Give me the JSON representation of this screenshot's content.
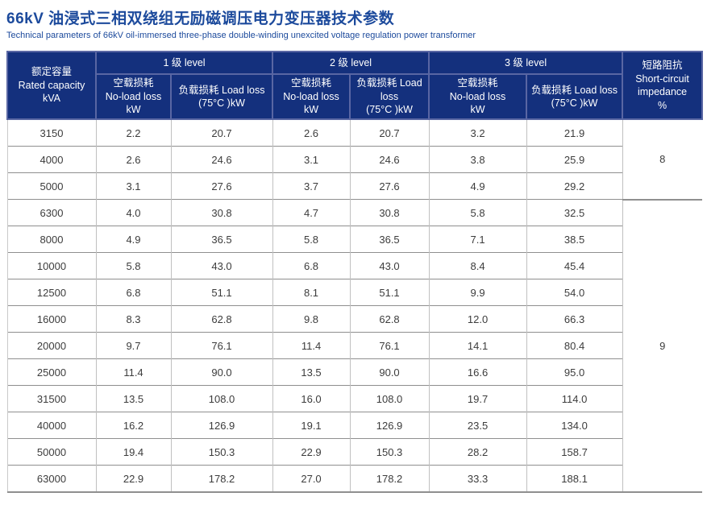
{
  "title": {
    "zh": "66kV 油浸式三相双绕组无励磁调压电力变压器技术参数",
    "en": "Technical parameters of 66kV oil-immersed three-phase double-winding unexcited voltage regulation power transformer"
  },
  "colors": {
    "header_bg": "#14307D",
    "header_divider": "#5966A3",
    "title_blue": "#1C4A9C",
    "grid_horizontal": "#8F8F8F",
    "grid_vertical": "#C0C0C0",
    "cell_text": "#3C3C3C"
  },
  "table": {
    "header": {
      "capacity": {
        "zh": "额定容量",
        "en": "Rated capacity",
        "unit": "kVA"
      },
      "groups": [
        {
          "label": "1 级 level"
        },
        {
          "label": "2 级 level"
        },
        {
          "label": "3 级 level"
        }
      ],
      "no_load": {
        "zh": "空载损耗",
        "en": "No-load loss",
        "unit": "kW"
      },
      "load_loss": {
        "line1": "负载损耗 Load loss",
        "line2": "(75°C )kW"
      },
      "impedance": {
        "zh": "短路阻抗",
        "en1": "Short-circuit",
        "en2": "impedance",
        "unit": "%"
      }
    },
    "rows": [
      {
        "capacity": "3150",
        "l1_no_load": "2.2",
        "l1_load": "20.7",
        "l2_no_load": "2.6",
        "l2_load": "20.7",
        "l3_no_load": "3.2",
        "l3_load": "21.9"
      },
      {
        "capacity": "4000",
        "l1_no_load": "2.6",
        "l1_load": "24.6",
        "l2_no_load": "3.1",
        "l2_load": "24.6",
        "l3_no_load": "3.8",
        "l3_load": "25.9"
      },
      {
        "capacity": "5000",
        "l1_no_load": "3.1",
        "l1_load": "27.6",
        "l2_no_load": "3.7",
        "l2_load": "27.6",
        "l3_no_load": "4.9",
        "l3_load": "29.2"
      },
      {
        "capacity": "6300",
        "l1_no_load": "4.0",
        "l1_load": "30.8",
        "l2_no_load": "4.7",
        "l2_load": "30.8",
        "l3_no_load": "5.8",
        "l3_load": "32.5"
      },
      {
        "capacity": "8000",
        "l1_no_load": "4.9",
        "l1_load": "36.5",
        "l2_no_load": "5.8",
        "l2_load": "36.5",
        "l3_no_load": "7.1",
        "l3_load": "38.5"
      },
      {
        "capacity": "10000",
        "l1_no_load": "5.8",
        "l1_load": "43.0",
        "l2_no_load": "6.8",
        "l2_load": "43.0",
        "l3_no_load": "8.4",
        "l3_load": "45.4"
      },
      {
        "capacity": "12500",
        "l1_no_load": "6.8",
        "l1_load": "51.1",
        "l2_no_load": "8.1",
        "l2_load": "51.1",
        "l3_no_load": "9.9",
        "l3_load": "54.0"
      },
      {
        "capacity": "16000",
        "l1_no_load": "8.3",
        "l1_load": "62.8",
        "l2_no_load": "9.8",
        "l2_load": "62.8",
        "l3_no_load": "12.0",
        "l3_load": "66.3"
      },
      {
        "capacity": "20000",
        "l1_no_load": "9.7",
        "l1_load": "76.1",
        "l2_no_load": "11.4",
        "l2_load": "76.1",
        "l3_no_load": "14.1",
        "l3_load": "80.4"
      },
      {
        "capacity": "25000",
        "l1_no_load": "11.4",
        "l1_load": "90.0",
        "l2_no_load": "13.5",
        "l2_load": "90.0",
        "l3_no_load": "16.6",
        "l3_load": "95.0"
      },
      {
        "capacity": "31500",
        "l1_no_load": "13.5",
        "l1_load": "108.0",
        "l2_no_load": "16.0",
        "l2_load": "108.0",
        "l3_no_load": "19.7",
        "l3_load": "114.0"
      },
      {
        "capacity": "40000",
        "l1_no_load": "16.2",
        "l1_load": "126.9",
        "l2_no_load": "19.1",
        "l2_load": "126.9",
        "l3_no_load": "23.5",
        "l3_load": "134.0"
      },
      {
        "capacity": "50000",
        "l1_no_load": "19.4",
        "l1_load": "150.3",
        "l2_no_load": "22.9",
        "l2_load": "150.3",
        "l3_no_load": "28.2",
        "l3_load": "158.7"
      },
      {
        "capacity": "63000",
        "l1_no_load": "22.9",
        "l1_load": "178.2",
        "l2_no_load": "27.0",
        "l2_load": "178.2",
        "l3_no_load": "33.3",
        "l3_load": "188.1"
      }
    ],
    "impedance_groups": [
      {
        "start": 0,
        "span": 3,
        "value": "8"
      },
      {
        "start": 3,
        "span": 11,
        "value": "9"
      }
    ]
  }
}
